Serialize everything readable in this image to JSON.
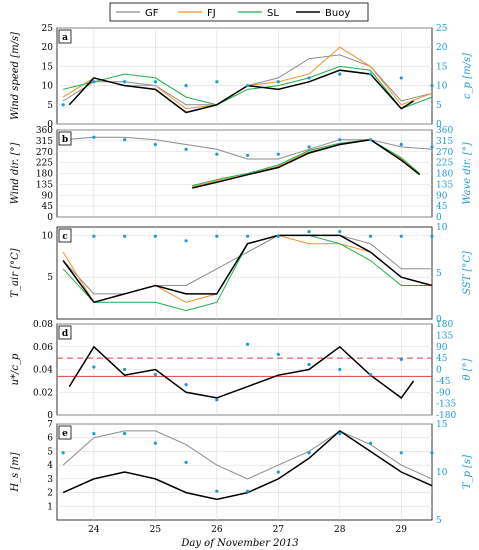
{
  "figure": {
    "legend": [
      {
        "label": "GF",
        "color": "#8c8c8c"
      },
      {
        "label": "FJ",
        "color": "#f0902a"
      },
      {
        "label": "SL",
        "color": "#1fae4a"
      },
      {
        "label": "Buoy",
        "color": "#000000"
      }
    ],
    "xlabel": "Day of November 2013",
    "xticks": [
      "24",
      "25",
      "26",
      "27",
      "28",
      "29"
    ],
    "right_axis_color": "#1f9ad6"
  },
  "chart_data": [
    {
      "type": "line",
      "panel": "a",
      "ylabel_left": "Wind speed [m/s]",
      "ylabel_right": "c_p [m/s]",
      "ylim": [
        0,
        25
      ],
      "yticks": [
        "0",
        "5",
        "10",
        "15",
        "20",
        "25"
      ],
      "yticks_right": [
        "0",
        "5",
        "10",
        "15",
        "20",
        "25"
      ],
      "grid": true,
      "series": [
        {
          "name": "GF",
          "x": [
            23.5,
            24,
            24.5,
            25,
            25.5,
            26,
            26.5,
            27,
            27.5,
            28,
            28.5,
            29,
            29.5
          ],
          "values": [
            6,
            11,
            11,
            10,
            5,
            5,
            10,
            12,
            17,
            18,
            15,
            6,
            8
          ]
        },
        {
          "name": "FJ",
          "x": [
            23.5,
            24,
            24.5,
            25,
            25.5,
            26,
            26.5,
            27,
            27.5,
            28,
            28.5,
            29,
            29.5
          ],
          "values": [
            7,
            12,
            10,
            10,
            4,
            5,
            10,
            11,
            13,
            20,
            15,
            5,
            8
          ]
        },
        {
          "name": "SL",
          "x": [
            23.5,
            24,
            24.5,
            25,
            25.5,
            26,
            26.5,
            27,
            27.5,
            28,
            28.5,
            29,
            29.5
          ],
          "values": [
            9,
            11,
            13,
            12,
            7,
            5,
            9,
            10,
            12,
            15,
            14,
            4,
            7
          ]
        },
        {
          "name": "Buoy",
          "x": [
            23.6,
            24,
            24.5,
            25,
            25.5,
            26,
            26.5,
            27,
            27.5,
            28,
            28.5,
            29,
            29.2
          ],
          "values": [
            5,
            12,
            10,
            9,
            3,
            5,
            10,
            9,
            11,
            14,
            13,
            4,
            6
          ]
        }
      ],
      "dots": {
        "x": [
          23.5,
          24,
          24.5,
          25,
          25.5,
          26,
          26.5,
          27,
          27.5,
          28,
          28.5,
          29,
          29.5
        ],
        "values": [
          5,
          11,
          11,
          11,
          10,
          11,
          10,
          11,
          12,
          13,
          13,
          12,
          10
        ]
      }
    },
    {
      "type": "line",
      "panel": "b",
      "ylabel_left": "Wind dir. [°]",
      "ylabel_right": "Wave dir. [°]",
      "ylim": [
        0,
        360
      ],
      "yticks": [
        "0",
        "45",
        "90",
        "135",
        "180",
        "225",
        "270",
        "315",
        "360"
      ],
      "yticks_right": [
        "0",
        "45",
        "90",
        "135",
        "180",
        "225",
        "270",
        "315",
        "360"
      ],
      "grid": true,
      "series": [
        {
          "name": "GF",
          "x": [
            23.5,
            24,
            24.5,
            25,
            25.5,
            26,
            26.5,
            27,
            27.5,
            28,
            28.5,
            29,
            29.5
          ],
          "values": [
            320,
            330,
            330,
            320,
            300,
            280,
            240,
            240,
            280,
            320,
            320,
            290,
            280
          ]
        },
        {
          "name": "FJ",
          "x": [
            25.6,
            26.1,
            26.5,
            27,
            27.5,
            28,
            28.5,
            29,
            29.3
          ],
          "values": [
            125,
            155,
            175,
            210,
            270,
            300,
            320,
            240,
            180
          ]
        },
        {
          "name": "SL",
          "x": [
            25.6,
            26.1,
            26.5,
            27,
            27.5,
            28,
            28.5,
            29,
            29.3
          ],
          "values": [
            130,
            160,
            180,
            215,
            275,
            305,
            320,
            245,
            180
          ]
        },
        {
          "name": "Buoy",
          "x": [
            25.6,
            26.1,
            26.5,
            27,
            27.5,
            28,
            28.5,
            29,
            29.3
          ],
          "values": [
            120,
            150,
            175,
            205,
            265,
            300,
            320,
            235,
            175
          ]
        }
      ],
      "dots": {
        "x": [
          23.5,
          24,
          24.5,
          25,
          25.5,
          26,
          26.5,
          27,
          27.5,
          28,
          28.5,
          29,
          29.5
        ],
        "values": [
          330,
          330,
          320,
          300,
          280,
          260,
          255,
          260,
          290,
          320,
          320,
          300,
          290
        ]
      }
    },
    {
      "type": "line",
      "panel": "c",
      "ylabel_left": "T_air [°C]",
      "ylabel_right": "SST [°C]",
      "ylim": [
        0,
        11
      ],
      "yticks": [
        "5",
        "10"
      ],
      "yticks_right": [
        "0",
        "5",
        "10"
      ],
      "grid": true,
      "series": [
        {
          "name": "GF",
          "x": [
            23.5,
            24,
            24.5,
            25,
            25.5,
            26,
            26.5,
            27,
            27.5,
            28,
            28.5,
            29,
            29.5
          ],
          "values": [
            7,
            3,
            3,
            4,
            4,
            6,
            8,
            10,
            10,
            10,
            9,
            6,
            6
          ]
        },
        {
          "name": "FJ",
          "x": [
            23.5,
            24,
            24.5,
            25,
            25.5,
            26,
            26.5,
            27,
            27.5,
            28,
            28.5,
            29,
            29.5
          ],
          "values": [
            8,
            2,
            3,
            4,
            2,
            3,
            9,
            10,
            9,
            9,
            8,
            5,
            4
          ]
        },
        {
          "name": "SL",
          "x": [
            23.5,
            24,
            24.5,
            25,
            25.5,
            26,
            26.5,
            27,
            27.5,
            28,
            28.5,
            29,
            29.5
          ],
          "values": [
            6,
            2,
            2,
            2,
            1,
            2,
            9,
            10,
            10,
            9,
            7,
            4,
            4
          ]
        },
        {
          "name": "Buoy",
          "x": [
            23.5,
            24,
            24.5,
            25,
            25.5,
            26,
            26.5,
            27,
            27.5,
            28,
            28.5,
            29,
            29.5
          ],
          "values": [
            7,
            2,
            3,
            4,
            3,
            3,
            9,
            10,
            10,
            10,
            8,
            5,
            4
          ]
        }
      ],
      "dots": {
        "x": [
          23.5,
          24,
          24.5,
          25,
          25.5,
          26,
          26.5,
          27,
          27.5,
          28,
          28.5,
          29,
          29.5
        ],
        "values": [
          9,
          9,
          9,
          9,
          8.5,
          9,
          9,
          9,
          9.5,
          9.5,
          9,
          9,
          9
        ]
      }
    },
    {
      "type": "line",
      "panel": "d",
      "ylabel_left": "u*/c_p",
      "ylabel_right": "θ [°]",
      "ylim": [
        0,
        0.08
      ],
      "yticks": [
        "0",
        "0.02",
        "0.04",
        "0.06",
        "0.08"
      ],
      "yticks_right": [
        "-180",
        "-135",
        "-90",
        "-45",
        "0",
        "45",
        "90",
        "135",
        "180"
      ],
      "grid": true,
      "reference_lines": [
        {
          "y": 0.034,
          "style": "solid",
          "color": "#e04040"
        },
        {
          "y": 0.05,
          "style": "dashed",
          "color": "#e04040"
        }
      ],
      "series": [
        {
          "name": "Buoy",
          "x": [
            23.6,
            24,
            24.5,
            25,
            25.5,
            26,
            26.5,
            27,
            27.5,
            28,
            28.5,
            29,
            29.2
          ],
          "values": [
            0.025,
            0.06,
            0.035,
            0.04,
            0.02,
            0.015,
            0.025,
            0.035,
            0.04,
            0.06,
            0.035,
            0.015,
            0.03
          ]
        }
      ],
      "dots": {
        "x": [
          24,
          24.5,
          25,
          25.5,
          26,
          26.5,
          27,
          27.5,
          28,
          28.5,
          29
        ],
        "values": [
          10,
          0,
          -20,
          -60,
          -120,
          100,
          60,
          20,
          0,
          -20,
          40
        ]
      }
    },
    {
      "type": "line",
      "panel": "e",
      "ylabel_left": "H_s [m]",
      "ylabel_right": "T_p [s]",
      "ylim": [
        0,
        7
      ],
      "yticks": [
        "1",
        "2",
        "3",
        "4",
        "5",
        "6",
        "7"
      ],
      "yticks_right": [
        "5",
        "10",
        "15"
      ],
      "grid": true,
      "series": [
        {
          "name": "GF",
          "x": [
            23.5,
            24,
            24.5,
            25,
            25.5,
            26,
            26.5,
            27,
            27.5,
            28,
            28.5,
            29,
            29.5
          ],
          "values": [
            4,
            6,
            6.5,
            6.5,
            5.5,
            4,
            3,
            4,
            5,
            6.5,
            5.5,
            4,
            3
          ]
        },
        {
          "name": "Buoy",
          "x": [
            23.5,
            24,
            24.5,
            25,
            25.5,
            26,
            26.5,
            27,
            27.5,
            28,
            28.5,
            29,
            29.5
          ],
          "values": [
            2,
            3,
            3.5,
            3,
            2,
            1.5,
            2,
            3,
            4.5,
            6.5,
            5,
            3.5,
            2.5
          ]
        }
      ],
      "dots": {
        "x": [
          23.5,
          24,
          24.5,
          25,
          25.5,
          26,
          26.5,
          27,
          27.5,
          28,
          28.5,
          29,
          29.5
        ],
        "values": [
          12,
          14,
          14,
          13,
          11,
          8,
          8,
          10,
          12,
          14,
          13,
          12,
          12
        ]
      }
    }
  ]
}
